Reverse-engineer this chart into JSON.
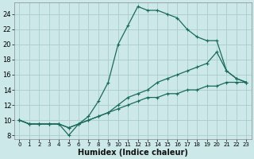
{
  "xlabel": "Humidex (Indice chaleur)",
  "bg_color": "#cce8e8",
  "grid_color": "#aacccc",
  "line_color": "#1a6b5a",
  "xlim": [
    -0.5,
    23.5
  ],
  "ylim": [
    7.5,
    25.5
  ],
  "xticks": [
    0,
    1,
    2,
    3,
    4,
    5,
    6,
    7,
    8,
    9,
    10,
    11,
    12,
    13,
    14,
    15,
    16,
    17,
    18,
    19,
    20,
    21,
    22,
    23
  ],
  "yticks": [
    8,
    10,
    12,
    14,
    16,
    18,
    20,
    22,
    24
  ],
  "series": [
    {
      "x": [
        0,
        1,
        2,
        3,
        4,
        5,
        6,
        7,
        8,
        9,
        10,
        11,
        12,
        13,
        14,
        15,
        16,
        17,
        18,
        19,
        20,
        21,
        22,
        23
      ],
      "y": [
        10,
        9.5,
        9.5,
        9.5,
        9.5,
        9.0,
        9.5,
        10.0,
        10.5,
        11.0,
        11.5,
        12.0,
        12.5,
        13.0,
        13.0,
        13.5,
        13.5,
        14.0,
        14.0,
        14.5,
        14.5,
        15.0,
        15.0,
        15.0
      ]
    },
    {
      "x": [
        0,
        1,
        2,
        3,
        4,
        5,
        6,
        7,
        8,
        9,
        10,
        11,
        12,
        13,
        14,
        15,
        16,
        17,
        18,
        19,
        20,
        21,
        22,
        23
      ],
      "y": [
        10,
        9.5,
        9.5,
        9.5,
        9.5,
        9.0,
        9.5,
        10.0,
        10.5,
        11.0,
        12.0,
        13.0,
        13.5,
        14.0,
        15.0,
        15.5,
        16.0,
        16.5,
        17.0,
        17.5,
        19.0,
        16.5,
        15.5,
        15.0
      ]
    },
    {
      "x": [
        0,
        1,
        2,
        3,
        4,
        5,
        6,
        7,
        8,
        9,
        10,
        11,
        12,
        13,
        14,
        15,
        16,
        17,
        18,
        19,
        20,
        21,
        22,
        23
      ],
      "y": [
        10,
        9.5,
        9.5,
        9.5,
        9.5,
        8.0,
        9.5,
        10.5,
        12.5,
        15.0,
        20.0,
        22.5,
        25.0,
        24.5,
        24.5,
        24.0,
        23.5,
        22.0,
        21.0,
        20.5,
        20.5,
        16.5,
        15.5,
        15.0
      ]
    }
  ]
}
